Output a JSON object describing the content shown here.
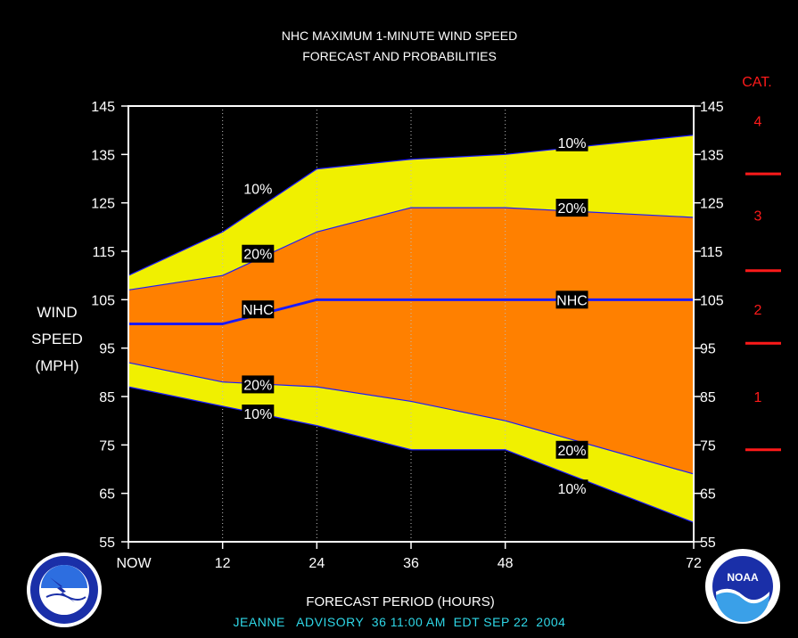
{
  "chart_data": {
    "type": "area",
    "title": "NHC MAXIMUM 1-MINUTE WIND SPEED",
    "subtitle": "FORECAST AND PROBABILITIES",
    "ylabel": [
      "WIND",
      "SPEED",
      "(MPH)"
    ],
    "xlabel": "FORECAST PERIOD (HOURS)",
    "advisory": "JEANNE   ADVISORY  36 11:00 AM  EDT SEP 22  2004",
    "x_ticks": [
      {
        "x": 0,
        "label": "NOW"
      },
      {
        "x": 12,
        "label": "12"
      },
      {
        "x": 24,
        "label": "24"
      },
      {
        "x": 36,
        "label": "36"
      },
      {
        "x": 48,
        "label": "48"
      },
      {
        "x": 72,
        "label": "72"
      }
    ],
    "y_ticks": [
      55,
      65,
      75,
      85,
      95,
      105,
      115,
      125,
      135,
      145
    ],
    "xlim": [
      0,
      72
    ],
    "ylim": [
      55,
      145
    ],
    "x": [
      0,
      12,
      24,
      36,
      48,
      72
    ],
    "series": [
      {
        "name": "10%",
        "band": "upper",
        "values": [
          110,
          119,
          132,
          134,
          135,
          139
        ]
      },
      {
        "name": "20%",
        "band": "upper",
        "values": [
          107,
          110,
          119,
          124,
          124,
          122
        ]
      },
      {
        "name": "NHC",
        "band": "center",
        "values": [
          100,
          100,
          105,
          105,
          105,
          105
        ]
      },
      {
        "name": "20%",
        "band": "lower",
        "values": [
          92,
          88,
          87,
          84,
          80,
          69
        ]
      },
      {
        "name": "10%",
        "band": "lower",
        "values": [
          87,
          83,
          79,
          74,
          74,
          59
        ]
      }
    ],
    "curve_labels": [
      {
        "text": "10%",
        "x": 16.5,
        "y": 128
      },
      {
        "text": "10%",
        "x": 56.5,
        "y": 137.5
      },
      {
        "text": "20%",
        "x": 16.5,
        "y": 114.5
      },
      {
        "text": "20%",
        "x": 56.5,
        "y": 124
      },
      {
        "text": "NHC",
        "x": 16.5,
        "y": 103
      },
      {
        "text": "NHC",
        "x": 56.5,
        "y": 105
      },
      {
        "text": "20%",
        "x": 16.5,
        "y": 87.5
      },
      {
        "text": "20%",
        "x": 56.5,
        "y": 74
      },
      {
        "text": "10%",
        "x": 16.5,
        "y": 81.5
      },
      {
        "text": "10%",
        "x": 56.5,
        "y": 66
      }
    ],
    "category_title": "CAT.",
    "categories": [
      {
        "label": "4",
        "y": 142
      },
      {
        "label": "3",
        "y": 122.5
      },
      {
        "label": "2",
        "y": 103
      },
      {
        "label": "1",
        "y": 85
      }
    ],
    "category_boundaries": [
      74,
      96,
      111,
      131
    ],
    "colors": {
      "outer_band": "#f0f000",
      "inner_band": "#ff8000",
      "line": "#1a1aff",
      "frame": "#ffffff",
      "category": "#ff1a1a",
      "advisory": "#2fd8e8"
    },
    "grid": {
      "vertical_dotted_at": [
        12,
        24,
        36,
        48
      ]
    }
  },
  "logos": {
    "left": "national-weather-service-logo",
    "right": "noaa-logo"
  }
}
